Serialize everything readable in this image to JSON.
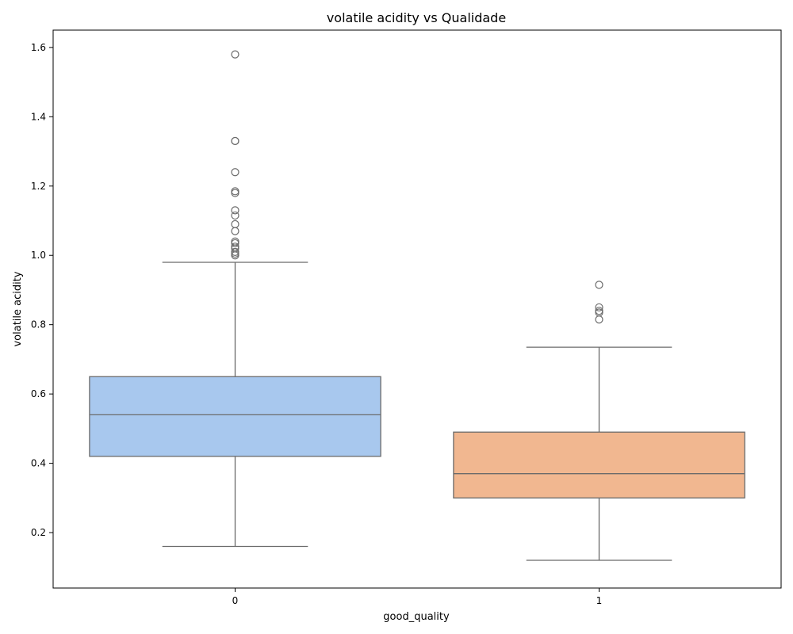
{
  "chart_data": {
    "type": "box",
    "title": "volatile acidity vs Qualidade",
    "xlabel": "good_quality",
    "ylabel": "volatile acidity",
    "categories": [
      "0",
      "1"
    ],
    "yticks": [
      0.2,
      0.4,
      0.6,
      0.8,
      1.0,
      1.2,
      1.4,
      1.6
    ],
    "ytick_labels": [
      "0.2",
      "0.4",
      "0.6",
      "0.8",
      "1.0",
      "1.2",
      "1.4",
      "1.6"
    ],
    "ylim": [
      0.04,
      1.65
    ],
    "grid": false,
    "boxes": [
      {
        "category": "0",
        "color": "#a8c8ee",
        "whisker_low": 0.16,
        "q1": 0.42,
        "median": 0.54,
        "q3": 0.65,
        "whisker_high": 0.98,
        "outliers": [
          1.58,
          1.33,
          1.33,
          1.24,
          1.185,
          1.18,
          1.13,
          1.115,
          1.09,
          1.07,
          1.04,
          1.035,
          1.025,
          1.02,
          1.01,
          1.005,
          1.0
        ]
      },
      {
        "category": "1",
        "color": "#f1b790",
        "whisker_low": 0.12,
        "q1": 0.3,
        "median": 0.37,
        "q3": 0.49,
        "whisker_high": 0.735,
        "outliers": [
          0.915,
          0.85,
          0.84,
          0.835,
          0.815
        ]
      }
    ]
  }
}
